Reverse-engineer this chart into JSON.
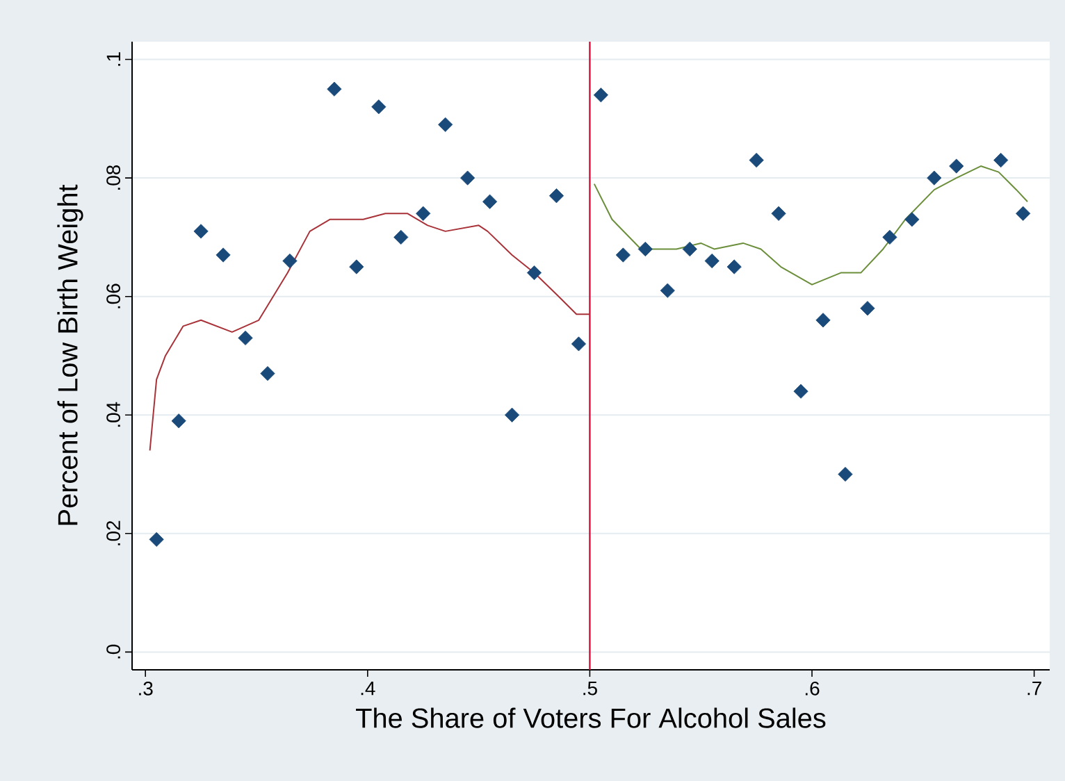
{
  "chart_data": {
    "type": "scatter",
    "xlabel": "The Share of Voters For Alcohol Sales",
    "ylabel": "Percent of Low Birth Weight",
    "xlim": [
      0.294,
      0.707
    ],
    "ylim": [
      -0.003,
      0.103
    ],
    "xticks": [
      {
        "value": 0.3,
        "label": ".3"
      },
      {
        "value": 0.4,
        "label": ".4"
      },
      {
        "value": 0.5,
        "label": ".5"
      },
      {
        "value": 0.6,
        "label": ".6"
      },
      {
        "value": 0.7,
        "label": ".7"
      }
    ],
    "yticks": [
      {
        "value": 0,
        "label": ".0"
      },
      {
        "value": 0.02,
        "label": ".02"
      },
      {
        "value": 0.04,
        "label": ".04"
      },
      {
        "value": 0.06,
        "label": ".06"
      },
      {
        "value": 0.08,
        "label": ".08"
      },
      {
        "value": 0.1,
        "label": ".1"
      }
    ],
    "grid": "y",
    "ref_lines": [
      {
        "axis": "x",
        "value": 0.5,
        "color": "#d0103a"
      }
    ],
    "series": [
      {
        "marker": "diamond",
        "color": "#1a4a7a",
        "x": [
          0.305,
          0.315,
          0.325,
          0.335,
          0.345,
          0.355,
          0.365,
          0.385,
          0.395,
          0.405,
          0.415,
          0.425,
          0.435,
          0.445,
          0.455,
          0.465,
          0.475,
          0.485,
          0.495,
          0.505,
          0.515,
          0.525,
          0.535,
          0.545,
          0.555,
          0.565,
          0.575,
          0.585,
          0.595,
          0.605,
          0.615,
          0.625,
          0.635,
          0.645,
          0.655,
          0.665,
          0.685,
          0.695
        ],
        "values": [
          0.019,
          0.039,
          0.071,
          0.067,
          0.053,
          0.047,
          0.066,
          0.095,
          0.065,
          0.092,
          0.07,
          0.074,
          0.089,
          0.08,
          0.076,
          0.04,
          0.064,
          0.077,
          0.052,
          0.094,
          0.067,
          0.068,
          0.061,
          0.068,
          0.066,
          0.065,
          0.083,
          0.074,
          0.044,
          0.056,
          0.03,
          0.058,
          0.07,
          0.073,
          0.08,
          0.082,
          0.083,
          0.074
        ]
      },
      {
        "type": "line",
        "marker": "none",
        "color": "#a83238",
        "x": [
          0.302,
          0.305,
          0.309,
          0.317,
          0.325,
          0.339,
          0.351,
          0.364,
          0.374,
          0.383,
          0.398,
          0.408,
          0.418,
          0.427,
          0.435,
          0.45,
          0.454,
          0.465,
          0.475,
          0.486,
          0.494,
          0.5
        ],
        "values": [
          0.034,
          0.046,
          0.05,
          0.055,
          0.056,
          0.054,
          0.056,
          0.064,
          0.071,
          0.073,
          0.073,
          0.074,
          0.074,
          0.072,
          0.071,
          0.072,
          0.071,
          0.067,
          0.064,
          0.06,
          0.057,
          0.057
        ]
      },
      {
        "type": "line",
        "marker": "none",
        "color": "#6b8e3a",
        "x": [
          0.502,
          0.51,
          0.523,
          0.539,
          0.55,
          0.556,
          0.569,
          0.577,
          0.586,
          0.6,
          0.613,
          0.622,
          0.632,
          0.642,
          0.655,
          0.665,
          0.676,
          0.684,
          0.692,
          0.697
        ],
        "values": [
          0.079,
          0.073,
          0.068,
          0.068,
          0.069,
          0.068,
          0.069,
          0.068,
          0.065,
          0.062,
          0.064,
          0.064,
          0.068,
          0.073,
          0.078,
          0.08,
          0.082,
          0.081,
          0.078,
          0.076
        ]
      }
    ]
  }
}
